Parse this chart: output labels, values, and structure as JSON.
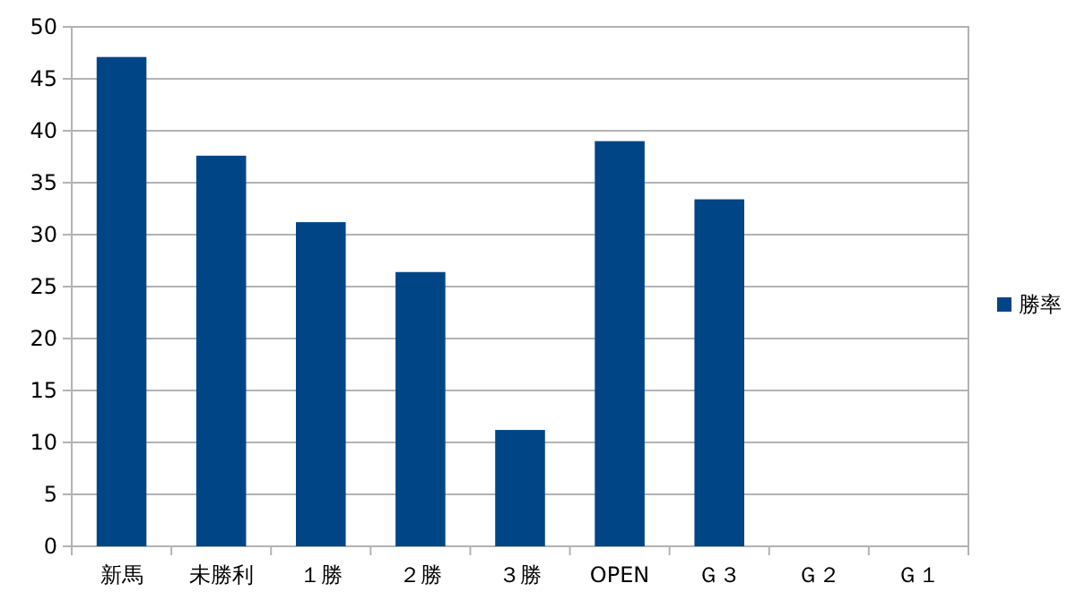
{
  "chart_data": {
    "type": "bar",
    "categories": [
      "新馬",
      "未勝利",
      "１勝",
      "２勝",
      "３勝",
      "OPEN",
      "Ｇ３",
      "Ｇ２",
      "Ｇ１"
    ],
    "series": [
      {
        "name": "勝率",
        "color": "#004586",
        "values": [
          47.1,
          37.6,
          31.2,
          26.4,
          11.2,
          39.0,
          33.4,
          0,
          0
        ]
      }
    ],
    "ylim": [
      0,
      50
    ],
    "yticks": [
      0,
      5,
      10,
      15,
      20,
      25,
      30,
      35,
      40,
      45,
      50
    ],
    "grid": "y",
    "legend": "right"
  }
}
